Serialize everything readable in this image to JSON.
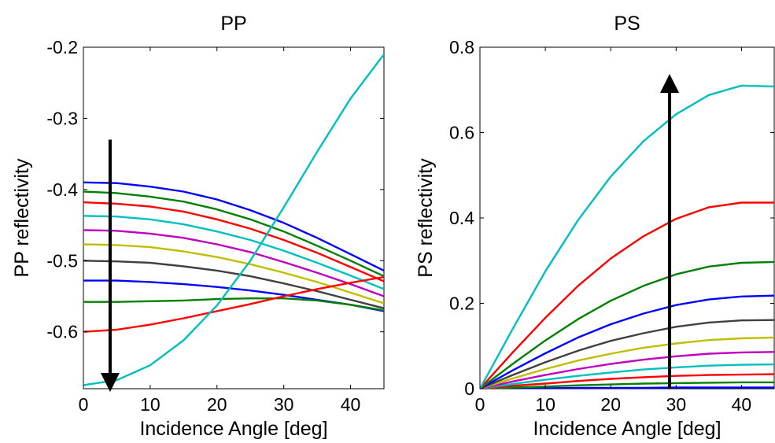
{
  "chart_data": [
    {
      "type": "line",
      "title": "PP",
      "xlabel": "Incidence Angle [deg]",
      "ylabel": "PP reflectivity",
      "xlim": [
        0,
        45
      ],
      "ylim": [
        -0.68,
        -0.2
      ],
      "xticks": [
        0,
        10,
        20,
        30,
        40
      ],
      "yticks": [
        -0.6,
        -0.5,
        -0.4,
        -0.3,
        -0.2
      ],
      "x": [
        0,
        5,
        10,
        15,
        20,
        25,
        30,
        35,
        40,
        45
      ],
      "annotation": "arrow pointing down at x≈4, from y≈-0.33 to y≈-0.68",
      "series": [
        {
          "color": "#0000ff",
          "values": [
            -0.39,
            -0.391,
            -0.396,
            -0.403,
            -0.414,
            -0.429,
            -0.447,
            -0.468,
            -0.491,
            -0.514
          ]
        },
        {
          "color": "#008000",
          "values": [
            -0.403,
            -0.405,
            -0.41,
            -0.417,
            -0.428,
            -0.442,
            -0.459,
            -0.479,
            -0.5,
            -0.522
          ]
        },
        {
          "color": "#ff0000",
          "values": [
            -0.418,
            -0.42,
            -0.424,
            -0.431,
            -0.442,
            -0.455,
            -0.471,
            -0.489,
            -0.509,
            -0.529
          ]
        },
        {
          "color": "#00bfbf",
          "values": [
            -0.437,
            -0.438,
            -0.442,
            -0.449,
            -0.459,
            -0.471,
            -0.486,
            -0.503,
            -0.521,
            -0.54
          ]
        },
        {
          "color": "#bf00bf",
          "values": [
            -0.457,
            -0.458,
            -0.462,
            -0.468,
            -0.477,
            -0.488,
            -0.502,
            -0.517,
            -0.533,
            -0.55
          ]
        },
        {
          "color": "#bfbf00",
          "values": [
            -0.477,
            -0.478,
            -0.481,
            -0.487,
            -0.495,
            -0.505,
            -0.517,
            -0.53,
            -0.545,
            -0.56
          ]
        },
        {
          "color": "#404040",
          "values": [
            -0.5,
            -0.501,
            -0.503,
            -0.508,
            -0.514,
            -0.522,
            -0.532,
            -0.543,
            -0.555,
            -0.567
          ]
        },
        {
          "color": "#0000ff",
          "values": [
            -0.528,
            -0.528,
            -0.53,
            -0.533,
            -0.537,
            -0.542,
            -0.548,
            -0.555,
            -0.562,
            -0.571
          ]
        },
        {
          "color": "#008000",
          "values": [
            -0.558,
            -0.558,
            -0.557,
            -0.556,
            -0.554,
            -0.553,
            -0.553,
            -0.556,
            -0.562,
            -0.57
          ]
        },
        {
          "color": "#ff0000",
          "values": [
            -0.6,
            -0.597,
            -0.59,
            -0.581,
            -0.571,
            -0.561,
            -0.55,
            -0.54,
            -0.531,
            -0.523
          ]
        },
        {
          "color": "#00bfbf",
          "values": [
            -0.675,
            -0.668,
            -0.647,
            -0.612,
            -0.563,
            -0.5,
            -0.425,
            -0.347,
            -0.272,
            -0.21
          ]
        }
      ]
    },
    {
      "type": "line",
      "title": "PS",
      "xlabel": "Incidence Angle [deg]",
      "ylabel": "PS reflectivity",
      "xlim": [
        0,
        45
      ],
      "ylim": [
        0,
        0.8
      ],
      "xticks": [
        0,
        10,
        20,
        30,
        40
      ],
      "yticks": [
        0,
        0.2,
        0.4,
        0.6,
        0.8
      ],
      "x": [
        0,
        5,
        10,
        15,
        20,
        25,
        30,
        35,
        40,
        45
      ],
      "annotation": "arrow pointing up at x≈29, from y≈0 to y≈0.73",
      "series": [
        {
          "color": "#0000ff",
          "values": [
            0,
            0.001,
            0.001,
            0.002,
            0.002,
            0.002,
            0.003,
            0.003,
            0.003,
            0.003
          ]
        },
        {
          "color": "#008000",
          "values": [
            0,
            0.003,
            0.005,
            0.008,
            0.01,
            0.012,
            0.013,
            0.014,
            0.015,
            0.015
          ]
        },
        {
          "color": "#ff0000",
          "values": [
            0,
            0.007,
            0.012,
            0.018,
            0.023,
            0.027,
            0.03,
            0.032,
            0.033,
            0.034
          ]
        },
        {
          "color": "#00bfbf",
          "values": [
            0,
            0.011,
            0.021,
            0.03,
            0.038,
            0.045,
            0.05,
            0.054,
            0.056,
            0.057
          ]
        },
        {
          "color": "#bf00bf",
          "values": [
            0,
            0.017,
            0.032,
            0.046,
            0.058,
            0.068,
            0.076,
            0.082,
            0.085,
            0.086
          ]
        },
        {
          "color": "#bfbf00",
          "values": [
            0,
            0.024,
            0.046,
            0.066,
            0.082,
            0.096,
            0.106,
            0.114,
            0.118,
            0.12
          ]
        },
        {
          "color": "#404040",
          "values": [
            0,
            0.032,
            0.062,
            0.089,
            0.112,
            0.13,
            0.145,
            0.155,
            0.16,
            0.161
          ]
        },
        {
          "color": "#0000ff",
          "values": [
            0,
            0.043,
            0.083,
            0.12,
            0.151,
            0.176,
            0.196,
            0.209,
            0.216,
            0.218
          ]
        },
        {
          "color": "#008000",
          "values": [
            0,
            0.058,
            0.113,
            0.163,
            0.206,
            0.241,
            0.268,
            0.286,
            0.295,
            0.297
          ]
        },
        {
          "color": "#ff0000",
          "values": [
            0,
            0.085,
            0.166,
            0.241,
            0.305,
            0.357,
            0.398,
            0.425,
            0.436,
            0.436
          ]
        },
        {
          "color": "#00bfbf",
          "values": [
            0,
            0.14,
            0.275,
            0.395,
            0.497,
            0.58,
            0.643,
            0.688,
            0.71,
            0.708
          ]
        }
      ]
    }
  ]
}
